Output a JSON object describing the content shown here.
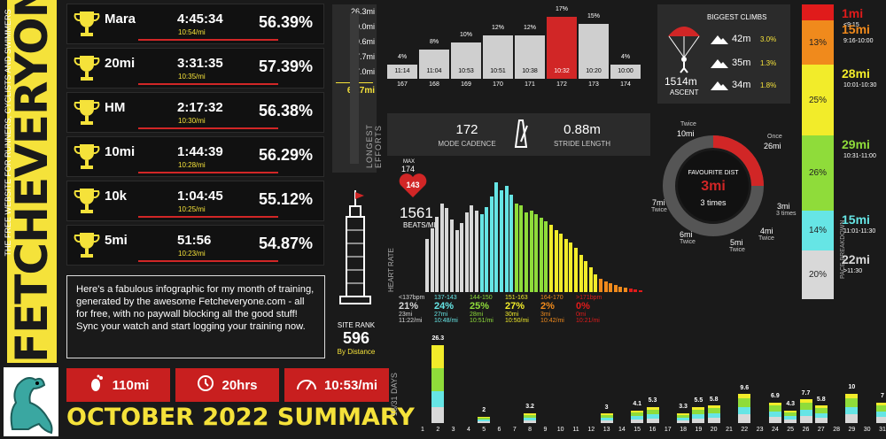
{
  "brand": {
    "logo_text": "FETCHEVERYONE",
    "tagline": "THE FREE WEBSITE FOR RUNNERS, CYCLISTS AND SWIMMERS"
  },
  "records": [
    {
      "name": "Mara",
      "time": "4:45:34",
      "pace": "10:54/mi",
      "pct": "56.39%"
    },
    {
      "name": "20mi",
      "time": "3:31:35",
      "pace": "10:35/mi",
      "pct": "57.39%"
    },
    {
      "name": "HM",
      "time": "2:17:32",
      "pace": "10:30/mi",
      "pct": "56.38%"
    },
    {
      "name": "10mi",
      "time": "1:44:39",
      "pace": "10:28/mi",
      "pct": "56.29%"
    },
    {
      "name": "10k",
      "time": "1:04:45",
      "pace": "10:25/mi",
      "pct": "55.12%"
    },
    {
      "name": "5mi",
      "time": "51:56",
      "pace": "10:23/mi",
      "pct": "54.87%"
    }
  ],
  "info_text": "Here's a fabulous infographic for my month of training, generated by the awesome Fetcheveryone.com - all for free, with no paywall blocking all the good stuff! Sync your watch and start logging your training now.",
  "site_rank": {
    "label": "SITE RANK",
    "value": "596",
    "by": "By Distance"
  },
  "stats": {
    "distance": "110mi",
    "hours": "20hrs",
    "pace": "10:53/mi"
  },
  "summary_title": "OCTOBER 2022 SUMMARY",
  "longest_efforts": {
    "title": "LONGEST EFFORTS",
    "values": [
      "26.3mi",
      "10.0mi",
      "9.6mi",
      "7.7mi",
      "7.0mi"
    ],
    "total": "60.7mi"
  },
  "weekly": [
    {
      "pct": "4%",
      "pace": "11:14",
      "week": "167",
      "value": 4
    },
    {
      "pct": "8%",
      "pace": "11:04",
      "week": "168",
      "value": 8
    },
    {
      "pct": "10%",
      "pace": "10:53",
      "week": "169",
      "value": 10
    },
    {
      "pct": "12%",
      "pace": "10:51",
      "week": "170",
      "value": 12
    },
    {
      "pct": "12%",
      "pace": "10:38",
      "week": "171",
      "value": 12
    },
    {
      "pct": "17%",
      "pace": "10:32",
      "week": "172",
      "value": 17
    },
    {
      "pct": "15%",
      "pace": "10:20",
      "week": "173",
      "value": 15
    },
    {
      "pct": "4%",
      "pace": "10:00",
      "week": "174",
      "value": 4
    }
  ],
  "cadence": {
    "value": "172",
    "label": "MODE CADENCE",
    "stride": "0.88m",
    "stride_label": "STRIDE LENGTH"
  },
  "climbs": {
    "title": "BIGGEST CLIMBS",
    "ascent": "1514m",
    "ascent_label": "ASCENT",
    "items": [
      {
        "height": "42m",
        "grade": "3.0%"
      },
      {
        "height": "35m",
        "grade": "1.3%"
      },
      {
        "height": "34m",
        "grade": "1.8%"
      }
    ]
  },
  "favourite": {
    "label": "FAVOURITE DIST",
    "value": "3mi",
    "times": "3 times",
    "ring": [
      {
        "dist": "Twice",
        "sub": "10mi"
      },
      {
        "dist": "26mi",
        "sub": "Once"
      },
      {
        "dist": "3mi",
        "sub": "3 times"
      },
      {
        "dist": "4mi",
        "sub": "Twice"
      },
      {
        "dist": "5mi",
        "sub": "Twice"
      },
      {
        "dist": "6mi",
        "sub": "Twice"
      },
      {
        "dist": "7mi",
        "sub": "Twice"
      }
    ]
  },
  "pace_breakdown": {
    "title": "PACE BREAKDOWN",
    "segments": [
      {
        "pct": "",
        "color": "#e01b1b",
        "dist": "1mi",
        "range": "<9:15",
        "value": 3
      },
      {
        "pct": "13%",
        "color": "#f08a1c",
        "dist": "15mi",
        "range": "9:16-10:00",
        "value": 13
      },
      {
        "pct": "25%",
        "color": "#f2ec2a",
        "dist": "28mi",
        "range": "10:01-10:30",
        "value": 25
      },
      {
        "pct": "26%",
        "color": "#8fdc3a",
        "dist": "29mi",
        "range": "10:31-11:00",
        "value": 26
      },
      {
        "pct": "14%",
        "color": "#66e5e5",
        "dist": "15mi",
        "range": "11:01-11:30",
        "value": 14
      },
      {
        "pct": "20%",
        "color": "#d8d8d8",
        "dist": "22mi",
        "range": ">11:30",
        "value": 20
      }
    ]
  },
  "heart_rate": {
    "max_label": "MAX",
    "max": "174",
    "heart_value": "143",
    "beats": "1561",
    "beats_label": "BEATS/MI",
    "axis_label": "HEART RATE",
    "zones": [
      {
        "range": "<137bpm",
        "pct": "21%",
        "dist": "23mi",
        "pace": "11:22/mi",
        "color": "#d8d8d8"
      },
      {
        "range": "137-143",
        "pct": "24%",
        "dist": "27mi",
        "pace": "10:48/mi",
        "color": "#66e5e5"
      },
      {
        "range": "144-150",
        "pct": "25%",
        "dist": "28mi",
        "pace": "10:51/mi",
        "color": "#8fdc3a"
      },
      {
        "range": "151-163",
        "pct": "27%",
        "dist": "30mi",
        "pace": "10:50/mi",
        "color": "#f2ec2a"
      },
      {
        "range": "164-170",
        "pct": "2%",
        "dist": "3mi",
        "pace": "10:42/mi",
        "color": "#f08a1c"
      },
      {
        "range": ">171bpm",
        "pct": "0%",
        "dist": "0mi",
        "pace": "10:21/mi",
        "color": "#e01b1b"
      }
    ]
  },
  "days": {
    "axis_label": "16/31 DAYS",
    "values": [
      0,
      26.3,
      0,
      0,
      2,
      0,
      0,
      3.2,
      0,
      0,
      0,
      0,
      3,
      0,
      4.1,
      5.3,
      0,
      3.3,
      5.5,
      5.8,
      0,
      9.6,
      0,
      6.9,
      4.3,
      7.7,
      5.8,
      0,
      10,
      0,
      7
    ],
    "labels": [
      "",
      "26.3",
      "",
      "",
      "2",
      "",
      "",
      "3.2",
      "",
      "",
      "",
      "",
      "3",
      "",
      "4.1",
      "5.3",
      "",
      "3.3",
      "5.5",
      "5.8",
      "",
      "9.6",
      "",
      "6.9",
      "4.3",
      "7.7",
      "5.8",
      "",
      "10",
      "",
      "7"
    ]
  }
}
